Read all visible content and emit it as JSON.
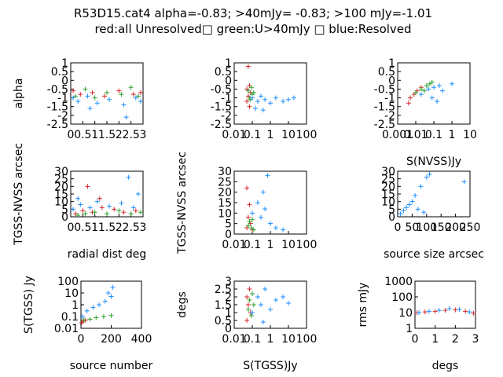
{
  "title_line1": "R53D15.cat4 alpha=-0.83; >40mJy= -0.83; >100 mJy=-1.01",
  "title_line2": "red:all Unresolved□ green:U>40mJy □ blue:Resolved",
  "colors": {
    "red": "#d62728",
    "green": "#2ca02c",
    "blue": "#1f8fff",
    "orange": "#a06000"
  },
  "chart_data": [
    {
      "type": "scatter",
      "name": "alpha-vs-radial-dist",
      "ylabel": "alpha",
      "xlabel": "",
      "xscale": "linear",
      "xlim": [
        0,
        3
      ],
      "ylim": [
        -2.5,
        1
      ],
      "xticks": [
        "0",
        "0.5",
        "1",
        "1.5",
        "2",
        "2.5",
        "3"
      ],
      "yticks": [
        "1",
        "0.5",
        "0",
        "-0.5",
        "-1",
        "-1.5",
        "-2",
        "-2.5"
      ],
      "series": [
        {
          "color": "red",
          "points": [
            [
              0.1,
              -0.6
            ],
            [
              0.4,
              -0.8
            ],
            [
              0.9,
              -0.7
            ],
            [
              1.4,
              -0.9
            ],
            [
              2.0,
              -0.6
            ],
            [
              2.6,
              -0.8
            ],
            [
              2.9,
              -0.7
            ]
          ]
        },
        {
          "color": "green",
          "points": [
            [
              0.2,
              -0.9
            ],
            [
              0.6,
              -0.5
            ],
            [
              1.0,
              -1.0
            ],
            [
              1.5,
              -0.7
            ],
            [
              2.1,
              -0.8
            ],
            [
              2.5,
              -0.4
            ],
            [
              2.8,
              -0.9
            ]
          ]
        },
        {
          "color": "blue",
          "points": [
            [
              0.1,
              -1.0
            ],
            [
              0.3,
              -1.2
            ],
            [
              0.7,
              -0.9
            ],
            [
              1.1,
              -1.3
            ],
            [
              1.6,
              -1.1
            ],
            [
              2.2,
              -1.4
            ],
            [
              2.7,
              -1.0
            ],
            [
              2.3,
              -2.1
            ],
            [
              0.8,
              -1.6
            ],
            [
              2.9,
              -1.2
            ]
          ]
        }
      ]
    },
    {
      "type": "scatter",
      "name": "alpha-vs-tgss-flux",
      "ylabel": "",
      "xlabel": "",
      "xscale": "log",
      "xlim": [
        0.01,
        100
      ],
      "ylim": [
        -2.5,
        1
      ],
      "xticks": [
        "0.01",
        "0.1",
        "1",
        "10",
        "100"
      ],
      "yticks": [
        "1",
        "0.5",
        "0",
        "-0.5",
        "-1",
        "-1.5",
        "-2",
        "-2.5"
      ],
      "series": [
        {
          "color": "red",
          "points": [
            [
              0.05,
              -0.5
            ],
            [
              0.06,
              -0.9
            ],
            [
              0.07,
              -0.3
            ],
            [
              0.05,
              -1.2
            ],
            [
              0.08,
              -0.7
            ],
            [
              0.06,
              0.8
            ],
            [
              0.07,
              -1.5
            ]
          ]
        },
        {
          "color": "green",
          "points": [
            [
              0.06,
              -0.6
            ],
            [
              0.07,
              -1.0
            ],
            [
              0.09,
              -0.4
            ],
            [
              0.1,
              -0.8
            ],
            [
              0.08,
              -1.1
            ],
            [
              0.12,
              -0.7
            ]
          ]
        },
        {
          "color": "blue",
          "points": [
            [
              0.1,
              -1.0
            ],
            [
              0.2,
              -1.2
            ],
            [
              0.3,
              -0.9
            ],
            [
              0.5,
              -1.1
            ],
            [
              1.0,
              -1.3
            ],
            [
              2.0,
              -1.0
            ],
            [
              5.0,
              -1.2
            ],
            [
              10.0,
              -1.1
            ],
            [
              0.15,
              -1.6
            ],
            [
              0.4,
              -1.7
            ],
            [
              20.0,
              -1.0
            ]
          ]
        }
      ]
    },
    {
      "type": "scatter",
      "name": "alpha-vs-nvss-flux",
      "ylabel": "",
      "xlabel": "S(NVSS)Jy",
      "xscale": "log",
      "xlim": [
        0.001,
        10
      ],
      "ylim": [
        -2.5,
        1
      ],
      "xticks": [
        "0.001",
        "0.01",
        "0.1",
        "1",
        "10"
      ],
      "yticks": [
        "1",
        "0.5",
        "0",
        "-0.5",
        "-1",
        "-1.5",
        "-2",
        "-2.5"
      ],
      "series": [
        {
          "color": "red",
          "points": [
            [
              0.005,
              -1.0
            ],
            [
              0.008,
              -0.8
            ],
            [
              0.012,
              -0.6
            ],
            [
              0.02,
              -0.4
            ],
            [
              0.004,
              -1.3
            ]
          ]
        },
        {
          "color": "green",
          "points": [
            [
              0.01,
              -0.7
            ],
            [
              0.02,
              -0.5
            ],
            [
              0.04,
              -0.3
            ],
            [
              0.06,
              -0.2
            ],
            [
              0.03,
              -0.6
            ],
            [
              0.08,
              -0.1
            ]
          ]
        },
        {
          "color": "blue",
          "points": [
            [
              0.02,
              -0.8
            ],
            [
              0.05,
              -0.5
            ],
            [
              0.1,
              -0.4
            ],
            [
              0.2,
              -0.3
            ],
            [
              0.3,
              -0.6
            ],
            [
              0.15,
              -1.2
            ],
            [
              0.08,
              -1.0
            ],
            [
              1.0,
              -0.2
            ]
          ]
        }
      ]
    },
    {
      "type": "scatter",
      "name": "offset-vs-radial-dist",
      "ylabel": "TGSS-NVSS arcsec",
      "xlabel": "radial dist deg",
      "xscale": "linear",
      "xlim": [
        0,
        3
      ],
      "ylim": [
        0,
        30
      ],
      "xticks": [
        "0",
        "0.5",
        "1",
        "1.5",
        "2",
        "2.5",
        "3"
      ],
      "yticks": [
        "30",
        "25",
        "20",
        "15",
        "10",
        "5",
        "0"
      ],
      "series": [
        {
          "color": "red",
          "points": [
            [
              0.2,
              2
            ],
            [
              0.5,
              4
            ],
            [
              0.9,
              3
            ],
            [
              1.3,
              6
            ],
            [
              1.8,
              5
            ],
            [
              2.2,
              3
            ],
            [
              2.7,
              4
            ],
            [
              0.7,
              20
            ],
            [
              1.2,
              12
            ]
          ]
        },
        {
          "color": "green",
          "points": [
            [
              0.3,
              1
            ],
            [
              0.6,
              2
            ],
            [
              1.0,
              3
            ],
            [
              1.5,
              2
            ],
            [
              2.0,
              4
            ],
            [
              2.5,
              2
            ],
            [
              2.9,
              3
            ]
          ]
        },
        {
          "color": "blue",
          "points": [
            [
              0.1,
              5
            ],
            [
              0.4,
              8
            ],
            [
              0.8,
              6
            ],
            [
              1.1,
              10
            ],
            [
              1.6,
              7
            ],
            [
              2.1,
              9
            ],
            [
              2.6,
              6
            ],
            [
              2.4,
              26
            ],
            [
              2.8,
              15
            ],
            [
              0.3,
              12
            ]
          ]
        }
      ]
    },
    {
      "type": "scatter",
      "name": "offset-vs-tgss-flux",
      "ylabel": "TGSS-NVSS arcsec",
      "xlabel": "",
      "xscale": "log",
      "xlim": [
        0.01,
        100
      ],
      "ylim": [
        0,
        30
      ],
      "xticks": [
        "0.01",
        "0.1",
        "1",
        "10",
        "100"
      ],
      "yticks": [
        "30",
        "25",
        "20",
        "15",
        "10",
        "5",
        "0"
      ],
      "series": [
        {
          "color": "red",
          "points": [
            [
              0.05,
              3
            ],
            [
              0.06,
              8
            ],
            [
              0.07,
              14
            ],
            [
              0.05,
              22
            ],
            [
              0.08,
              5
            ],
            [
              0.1,
              2
            ]
          ]
        },
        {
          "color": "green",
          "points": [
            [
              0.06,
              4
            ],
            [
              0.07,
              6
            ],
            [
              0.09,
              3
            ],
            [
              0.1,
              7
            ],
            [
              0.12,
              2
            ]
          ]
        },
        {
          "color": "blue",
          "points": [
            [
              0.1,
              10
            ],
            [
              0.2,
              15
            ],
            [
              0.3,
              8
            ],
            [
              0.5,
              12
            ],
            [
              1.0,
              5
            ],
            [
              2.0,
              3
            ],
            [
              0.7,
              28
            ],
            [
              0.4,
              20
            ],
            [
              5.0,
              2
            ]
          ]
        }
      ]
    },
    {
      "type": "scatter",
      "name": "offset-vs-source-size",
      "ylabel": "",
      "xlabel": "source size arcsec",
      "xscale": "linear",
      "xlim": [
        0,
        250
      ],
      "ylim": [
        0,
        30
      ],
      "xticks": [
        "0",
        "50",
        "100",
        "150",
        "200",
        "250"
      ],
      "yticks": [
        "30",
        "25",
        "20",
        "15",
        "10",
        "5",
        "0"
      ],
      "series": [
        {
          "color": "blue",
          "points": [
            [
              10,
              2
            ],
            [
              20,
              4
            ],
            [
              30,
              6
            ],
            [
              40,
              8
            ],
            [
              50,
              10
            ],
            [
              60,
              14
            ],
            [
              80,
              20
            ],
            [
              100,
              26
            ],
            [
              110,
              28
            ],
            [
              230,
              23
            ],
            [
              70,
              5
            ],
            [
              90,
              3
            ]
          ]
        }
      ]
    },
    {
      "type": "scatter",
      "name": "tgss-flux-vs-source-number",
      "ylabel": "S(TGSS) Jy",
      "xlabel": "source number",
      "xscale": "linear",
      "yscale": "log",
      "xlim": [
        0,
        400
      ],
      "ylim": [
        0.01,
        100
      ],
      "xticks": [
        "0",
        "200",
        "400"
      ],
      "yticks": [
        "100",
        "10",
        "1",
        "0.1",
        "0.01"
      ],
      "series": [
        {
          "color": "red",
          "points": [
            [
              5,
              0.03
            ],
            [
              15,
              0.04
            ],
            [
              30,
              0.05
            ]
          ]
        },
        {
          "color": "green",
          "points": [
            [
              20,
              0.05
            ],
            [
              60,
              0.06
            ],
            [
              100,
              0.08
            ],
            [
              150,
              0.1
            ],
            [
              200,
              0.12
            ]
          ]
        },
        {
          "color": "blue",
          "points": [
            [
              10,
              0.1
            ],
            [
              40,
              0.3
            ],
            [
              80,
              0.6
            ],
            [
              120,
              1.0
            ],
            [
              160,
              2.0
            ],
            [
              200,
              5.0
            ],
            [
              210,
              30.0
            ],
            [
              180,
              10.0
            ]
          ]
        }
      ]
    },
    {
      "type": "scatter",
      "name": "radial-dist-vs-tgss-flux",
      "ylabel": "degs",
      "xlabel": "S(TGSS)Jy",
      "xscale": "log",
      "xlim": [
        0.01,
        100
      ],
      "ylim": [
        0,
        3
      ],
      "xticks": [
        "0.01",
        "0.1",
        "1",
        "10",
        "100"
      ],
      "yticks": [
        "3",
        "2.5",
        "2",
        "1.5",
        "1",
        "0.5",
        "0"
      ],
      "series": [
        {
          "color": "red",
          "points": [
            [
              0.05,
              0.5
            ],
            [
              0.06,
              1.5
            ],
            [
              0.07,
              2.5
            ],
            [
              0.05,
              2.0
            ],
            [
              0.08,
              1.0
            ]
          ]
        },
        {
          "color": "green",
          "points": [
            [
              0.06,
              1.2
            ],
            [
              0.07,
              1.8
            ],
            [
              0.09,
              0.8
            ],
            [
              0.1,
              2.2
            ],
            [
              0.12,
              1.5
            ]
          ]
        },
        {
          "color": "blue",
          "points": [
            [
              0.1,
              1.0
            ],
            [
              0.2,
              2.0
            ],
            [
              0.3,
              1.5
            ],
            [
              0.5,
              2.5
            ],
            [
              1.0,
              1.2
            ],
            [
              2.0,
              1.8
            ],
            [
              5.0,
              2.0
            ],
            [
              0.4,
              0.4
            ],
            [
              10.0,
              1.6
            ]
          ]
        }
      ]
    },
    {
      "type": "scatter",
      "name": "rms-vs-radial-dist",
      "ylabel": "rms mJy",
      "xlabel": "degs",
      "xscale": "linear",
      "yscale": "log",
      "xlim": [
        0,
        3
      ],
      "ylim": [
        1,
        1000
      ],
      "xticks": [
        "0",
        "1",
        "2",
        "3"
      ],
      "yticks": [
        "1000",
        "100",
        "10",
        "1"
      ],
      "series": [
        {
          "color": "red",
          "points": [
            [
              0.1,
              10
            ],
            [
              0.5,
              11
            ],
            [
              1.0,
              12
            ],
            [
              1.5,
              14
            ],
            [
              2.0,
              15
            ],
            [
              2.5,
              12
            ],
            [
              2.9,
              9
            ]
          ]
        },
        {
          "color": "blue",
          "points": [
            [
              0.2,
              10
            ],
            [
              0.7,
              12
            ],
            [
              1.2,
              14
            ],
            [
              1.7,
              18
            ],
            [
              2.2,
              16
            ],
            [
              2.7,
              11
            ]
          ]
        }
      ]
    }
  ]
}
